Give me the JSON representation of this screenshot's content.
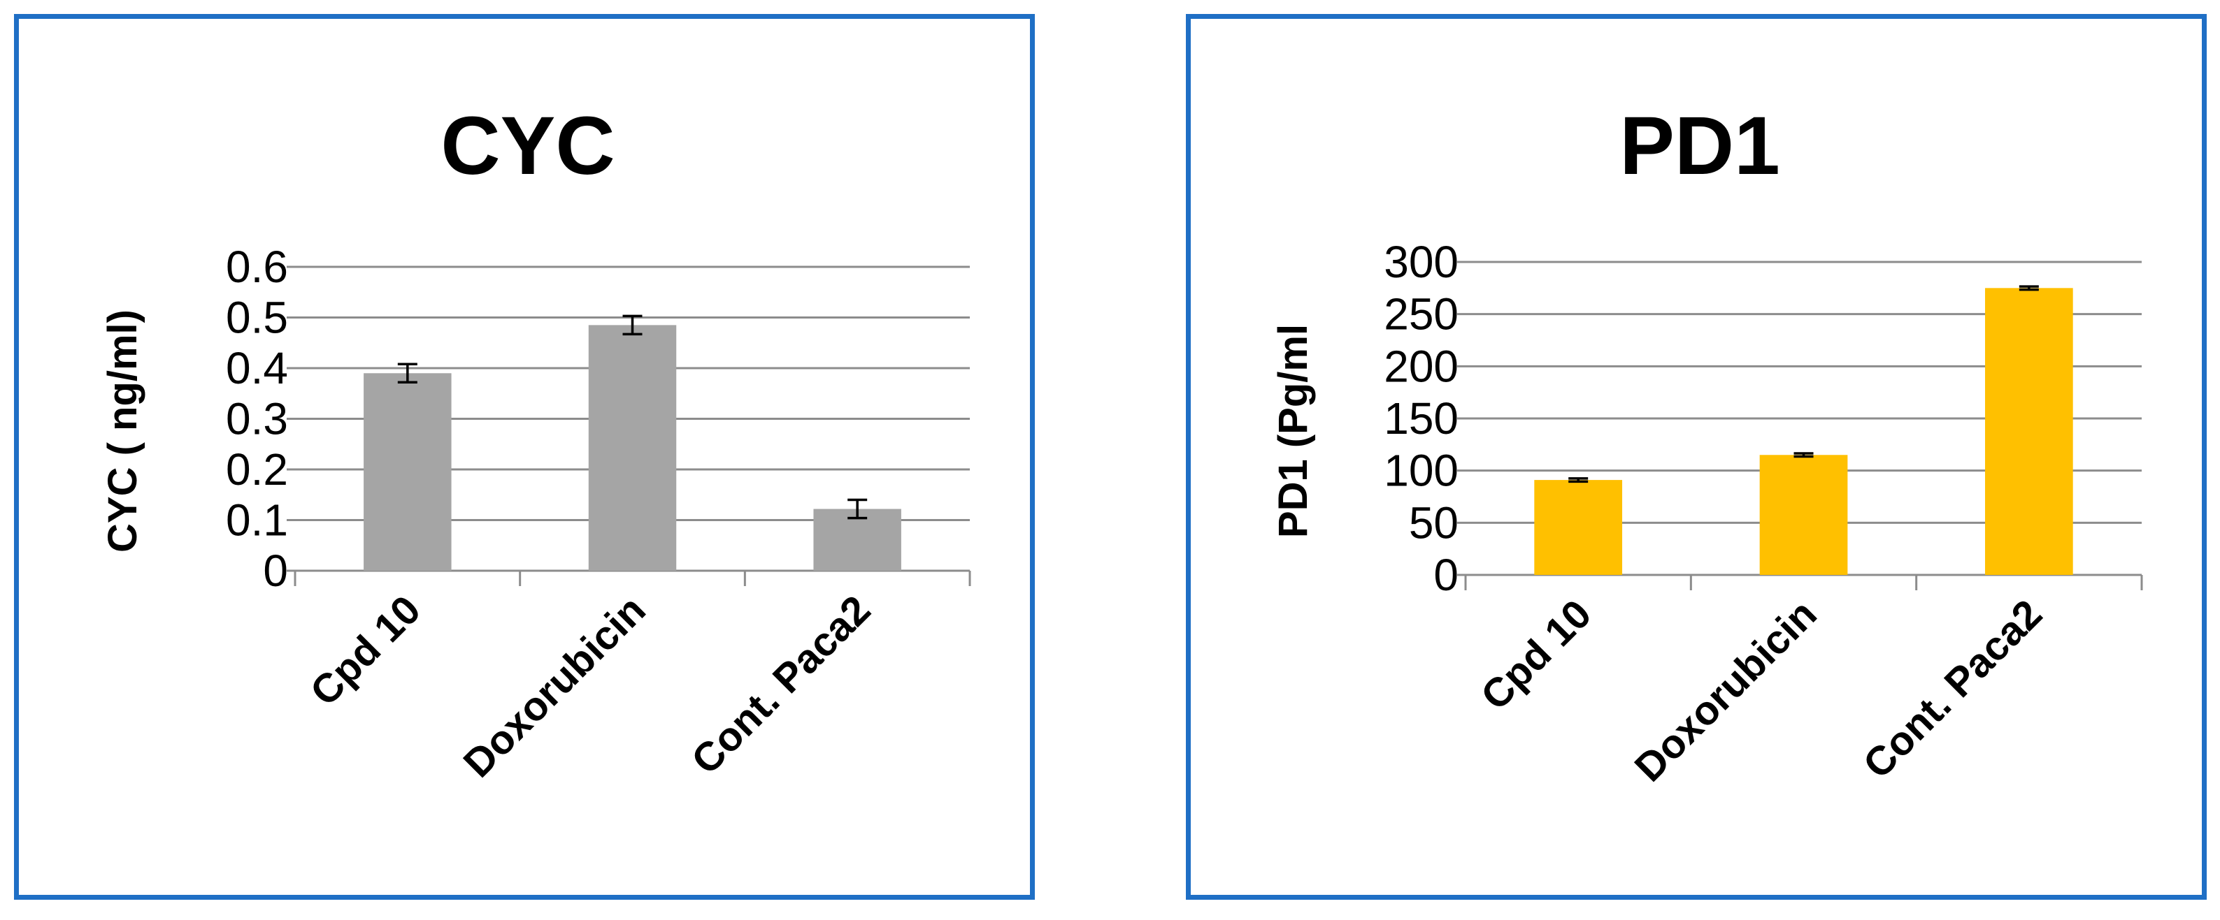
{
  "chart_data": [
    {
      "type": "bar",
      "title": "CYC",
      "ylabel": "CYC ( ng/ml)",
      "xlabel": "",
      "categories": [
        "Cpd 10",
        "Doxorubicin",
        "Cont. Paca2"
      ],
      "values": [
        0.39,
        0.485,
        0.122
      ],
      "errors": [
        0.018,
        0.018,
        0.018
      ],
      "ylim": [
        0,
        0.6
      ],
      "yticks": [
        "0",
        "0.1",
        "0.2",
        "0.3",
        "0.4",
        "0.5",
        "0.6"
      ],
      "grid": true,
      "legend": "none",
      "bar_color": "#a5a5a5"
    },
    {
      "type": "bar",
      "title": "PD1",
      "ylabel": "PD1 (Pg/ml",
      "xlabel": "",
      "categories": [
        "Cpd 10",
        "Doxorubicin",
        "Cont. Paca2"
      ],
      "values": [
        91,
        115,
        275
      ],
      "errors": [
        1.5,
        1.5,
        1.5
      ],
      "ylim": [
        0,
        300
      ],
      "yticks": [
        "0",
        "50",
        "100",
        "150",
        "200",
        "250",
        "300"
      ],
      "grid": true,
      "legend": "none",
      "bar_color": "#ffc000"
    }
  ]
}
